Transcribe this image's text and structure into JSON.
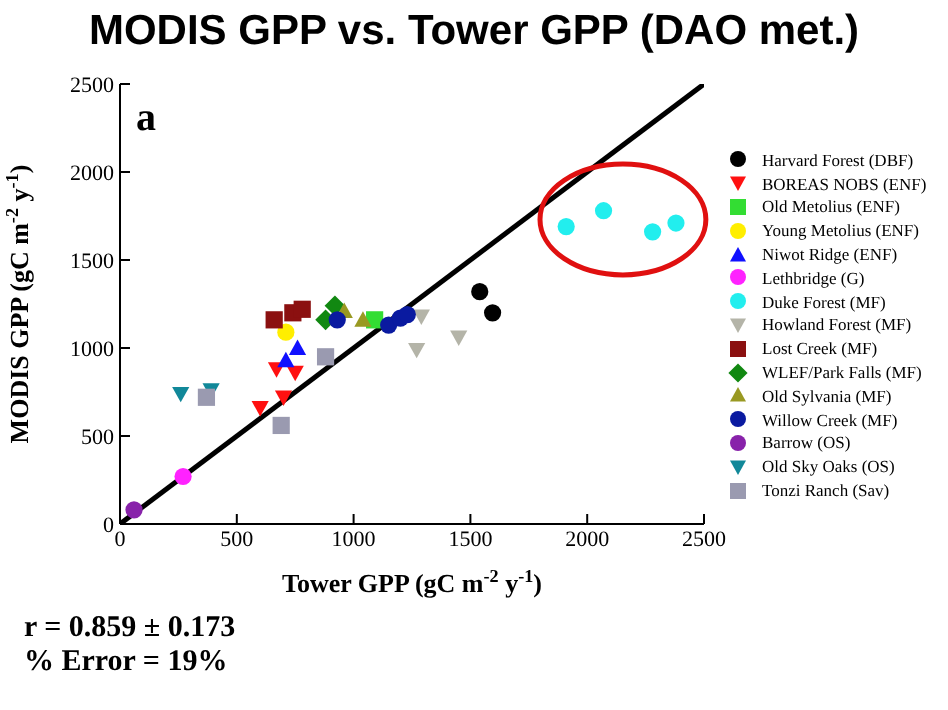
{
  "chart_data": {
    "type": "scatter",
    "title": "MODIS GPP vs. Tower GPP (DAO met.)",
    "xlabel": "Tower GPP (gC m$^{-2}$ y$^{-1}$)",
    "ylabel": "MODIS GPP (gC m$^{-2}$ y$^{-1}$)",
    "xlim": [
      0,
      2500
    ],
    "ylim": [
      0,
      2500
    ],
    "xticks": [
      0,
      500,
      1000,
      1500,
      2000,
      2500
    ],
    "yticks": [
      0,
      500,
      1000,
      1500,
      2000,
      2500
    ],
    "grid": false,
    "legend": "right",
    "annotations": [
      "a",
      "r = 0.859 ± 0.173",
      "% Error = 19%"
    ],
    "series": [
      {
        "type": "line",
        "color": "#000000",
        "x": [
          0,
          2500
        ],
        "values": [
          0,
          2500
        ],
        "marker": "none"
      },
      {
        "name": "Harvard Forest (DBF)",
        "color": "#000000",
        "marker": "circle",
        "x": [
          1540,
          1595
        ],
        "values": [
          1320,
          1200
        ]
      },
      {
        "name": "BOREAS NOBS (ENF)",
        "color": "#ff1010",
        "marker": "triangle-down",
        "x": [
          600,
          700,
          670,
          750
        ],
        "values": [
          660,
          720,
          880,
          860
        ]
      },
      {
        "name": "Old Metolius (ENF)",
        "color": "#33dd33",
        "marker": "square",
        "x": [
          1090
        ],
        "values": [
          1160
        ]
      },
      {
        "name": "Young Metolius (ENF)",
        "color": "#ffee00",
        "marker": "circle",
        "x": [
          710
        ],
        "values": [
          1090
        ]
      },
      {
        "name": "Niwot Ridge (ENF)",
        "color": "#1010ff",
        "marker": "triangle",
        "x": [
          710,
          760
        ],
        "values": [
          930,
          1000
        ]
      },
      {
        "name": "Lethbridge (G)",
        "color": "#ff22ff",
        "marker": "circle",
        "x": [
          270
        ],
        "values": [
          270
        ]
      },
      {
        "name": "Duke Forest (MF)",
        "color": "#22eeee",
        "marker": "circle",
        "x": [
          1910,
          2070,
          2280,
          2380
        ],
        "values": [
          1690,
          1780,
          1660,
          1710
        ]
      },
      {
        "name": "Howland Forest (MF)",
        "color": "#b4b4a8",
        "marker": "triangle-down",
        "x": [
          1290,
          1270,
          1450
        ],
        "values": [
          1180,
          990,
          1060
        ]
      },
      {
        "name": "Lost Creek (MF)",
        "color": "#8b1010",
        "marker": "square",
        "x": [
          660,
          740,
          780
        ],
        "values": [
          1160,
          1200,
          1220
        ]
      },
      {
        "name": "WLEF/Park Falls (MF)",
        "color": "#118811",
        "marker": "diamond",
        "x": [
          920,
          880
        ],
        "values": [
          1240,
          1160
        ]
      },
      {
        "name": "Old Sylvania (MF)",
        "color": "#999922",
        "marker": "triangle",
        "x": [
          960,
          1040
        ],
        "values": [
          1210,
          1160
        ]
      },
      {
        "name": "Willow Creek (MF)",
        "color": "#0a1aa0",
        "marker": "circle",
        "x": [
          930,
          1150,
          1200,
          1230
        ],
        "values": [
          1160,
          1130,
          1170,
          1190
        ]
      },
      {
        "name": "Barrow (OS)",
        "color": "#8822aa",
        "marker": "circle",
        "x": [
          60
        ],
        "values": [
          80
        ]
      },
      {
        "name": "Old Sky Oaks (OS)",
        "color": "#118899",
        "marker": "triangle-down",
        "x": [
          260,
          390
        ],
        "values": [
          740,
          760
        ]
      },
      {
        "name": "Tonzi Ranch (Sav)",
        "color": "#9a9ab0",
        "marker": "square",
        "x": [
          370,
          690,
          880
        ],
        "values": [
          720,
          560,
          950
        ]
      }
    ]
  }
}
